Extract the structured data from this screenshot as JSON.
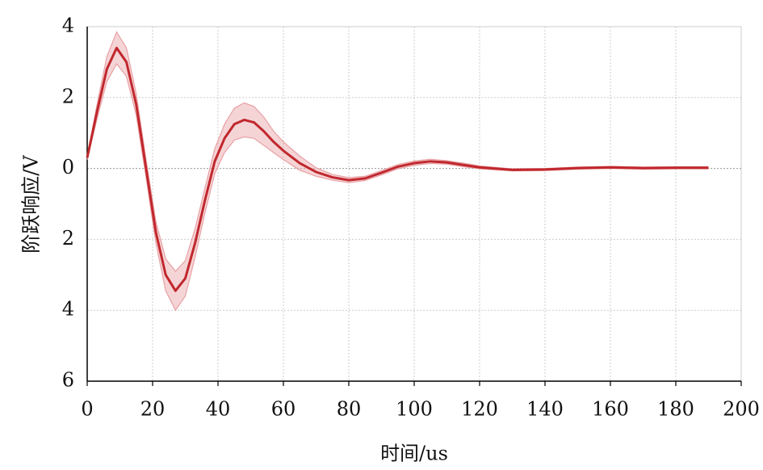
{
  "chart_data": {
    "type": "line",
    "xlabel": "时间/us",
    "ylabel": "阶跃响应/V",
    "xlim": [
      0,
      200
    ],
    "ylim": [
      -6,
      4
    ],
    "xticks": [
      0,
      20,
      40,
      60,
      80,
      100,
      120,
      140,
      160,
      180,
      200
    ],
    "yticks": [
      4,
      2,
      0,
      {
        "value": -2,
        "label": "2"
      },
      {
        "value": -4,
        "label": "4"
      },
      {
        "value": -6,
        "label": "6"
      }
    ],
    "grid": true,
    "x": [
      0,
      3,
      6,
      9,
      12,
      15,
      18,
      21,
      24,
      27,
      30,
      33,
      36,
      39,
      42,
      45,
      48,
      51,
      54,
      57,
      60,
      65,
      70,
      75,
      80,
      85,
      90,
      95,
      100,
      105,
      110,
      115,
      120,
      130,
      140,
      150,
      160,
      170,
      180,
      190
    ],
    "series": [
      {
        "color": "#c0282d",
        "values": [
          0.3,
          1.6,
          2.8,
          3.4,
          3.0,
          1.8,
          0,
          -1.8,
          -3.0,
          -3.45,
          -3.1,
          -2.1,
          -0.9,
          0.2,
          0.85,
          1.25,
          1.37,
          1.3,
          1.05,
          0.75,
          0.5,
          0.15,
          -0.1,
          -0.25,
          -0.33,
          -0.28,
          -0.12,
          0.05,
          0.15,
          0.2,
          0.17,
          0.1,
          0.03,
          -0.04,
          -0.03,
          0.01,
          0.03,
          0.01,
          0.02,
          0.02
        ]
      }
    ],
    "band": {
      "color": "#e8a0a4",
      "upper": [
        0.35,
        1.8,
        3.15,
        3.85,
        3.4,
        2.1,
        0.25,
        -1.5,
        -2.55,
        -2.9,
        -2.6,
        -1.7,
        -0.55,
        0.55,
        1.25,
        1.7,
        1.85,
        1.75,
        1.45,
        1.05,
        0.75,
        0.35,
        0.02,
        -0.17,
        -0.26,
        -0.22,
        -0.06,
        0.11,
        0.21,
        0.26,
        0.22,
        0.15,
        0.07,
        -0.01,
        0,
        0.04,
        0.06,
        0.04,
        0.05,
        0.05
      ],
      "lower": [
        0.25,
        1.4,
        2.45,
        2.95,
        2.6,
        1.5,
        -0.25,
        -2.1,
        -3.45,
        -4.0,
        -3.6,
        -2.5,
        -1.25,
        -0.15,
        0.45,
        0.8,
        0.89,
        0.85,
        0.65,
        0.45,
        0.25,
        -0.05,
        -0.22,
        -0.33,
        -0.4,
        -0.34,
        -0.18,
        -0.01,
        0.09,
        0.14,
        0.12,
        0.05,
        -0.01,
        -0.07,
        -0.06,
        -0.02,
        0,
        -0.02,
        -0.01,
        -0.01
      ]
    }
  }
}
